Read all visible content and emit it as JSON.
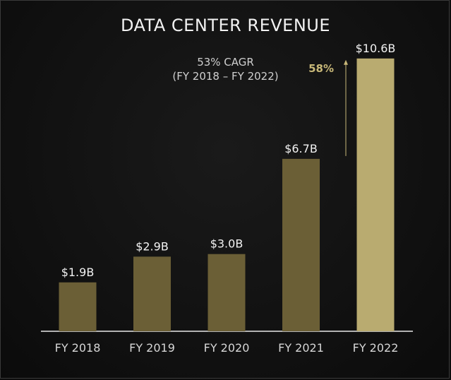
{
  "chart_data": {
    "type": "bar",
    "title": "DATA CENTER REVENUE",
    "subtitle_line1": "53% CAGR",
    "subtitle_line2": "(FY 2018 – FY 2022)",
    "categories": [
      "FY 2018",
      "FY 2019",
      "FY 2020",
      "FY 2021",
      "FY 2022"
    ],
    "values": [
      1.9,
      2.9,
      3.0,
      6.7,
      10.6
    ],
    "value_labels": [
      "$1.9B",
      "$2.9B",
      "$3.0B",
      "$6.7B",
      "$10.6B"
    ],
    "annotation": "58%",
    "ylim": [
      0,
      11.5
    ],
    "grid": false,
    "legend": "none",
    "colors": {
      "bar": "#6b5f36",
      "highlight_bar": "#b9ab70",
      "annotation": "#c8b878",
      "baseline": "#e8e8e8"
    }
  }
}
